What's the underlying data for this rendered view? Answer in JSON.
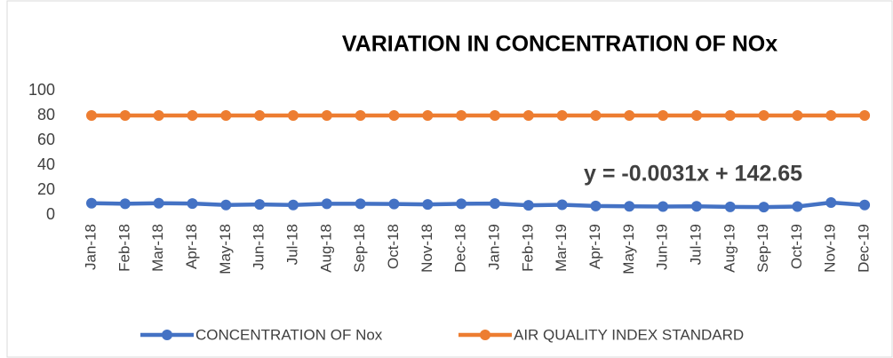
{
  "chart_data": {
    "type": "line",
    "title": "VARIATION IN CONCENTRATION OF NOx",
    "annotation": "y = -0.0031x + 142.65",
    "categories": [
      "Jan-18",
      "Feb-18",
      "Mar-18",
      "Apr-18",
      "May-18",
      "Jun-18",
      "Jul-18",
      "Aug-18",
      "Sep-18",
      "Oct-18",
      "Nov-18",
      "Dec-18",
      "Jan-19",
      "Feb-19",
      "Mar-19",
      "Apr-19",
      "May-19",
      "Jun-19",
      "Jul-19",
      "Aug-19",
      "Sep-19",
      "Oct-19",
      "Nov-19",
      "Dec-19"
    ],
    "series": [
      {
        "name": "CONCENTRATION OF Nox",
        "color": "#4472c4",
        "values": [
          9.5,
          9,
          9.5,
          9.2,
          8,
          8.5,
          8,
          9,
          9,
          8.8,
          8.5,
          9,
          9.2,
          7.8,
          8.2,
          7.2,
          7,
          6.8,
          7,
          6.5,
          6.3,
          6.8,
          10,
          8
        ]
      },
      {
        "name": "AIR QUALITY INDEX STANDARD",
        "color": "#ed7d31",
        "values": [
          80,
          80,
          80,
          80,
          80,
          80,
          80,
          80,
          80,
          80,
          80,
          80,
          80,
          80,
          80,
          80,
          80,
          80,
          80,
          80,
          80,
          80,
          80,
          80
        ]
      }
    ],
    "ylim": [
      0,
      100
    ],
    "yticks": [
      0,
      20,
      40,
      60,
      80,
      100
    ],
    "grid": false,
    "legend": "bottom"
  }
}
